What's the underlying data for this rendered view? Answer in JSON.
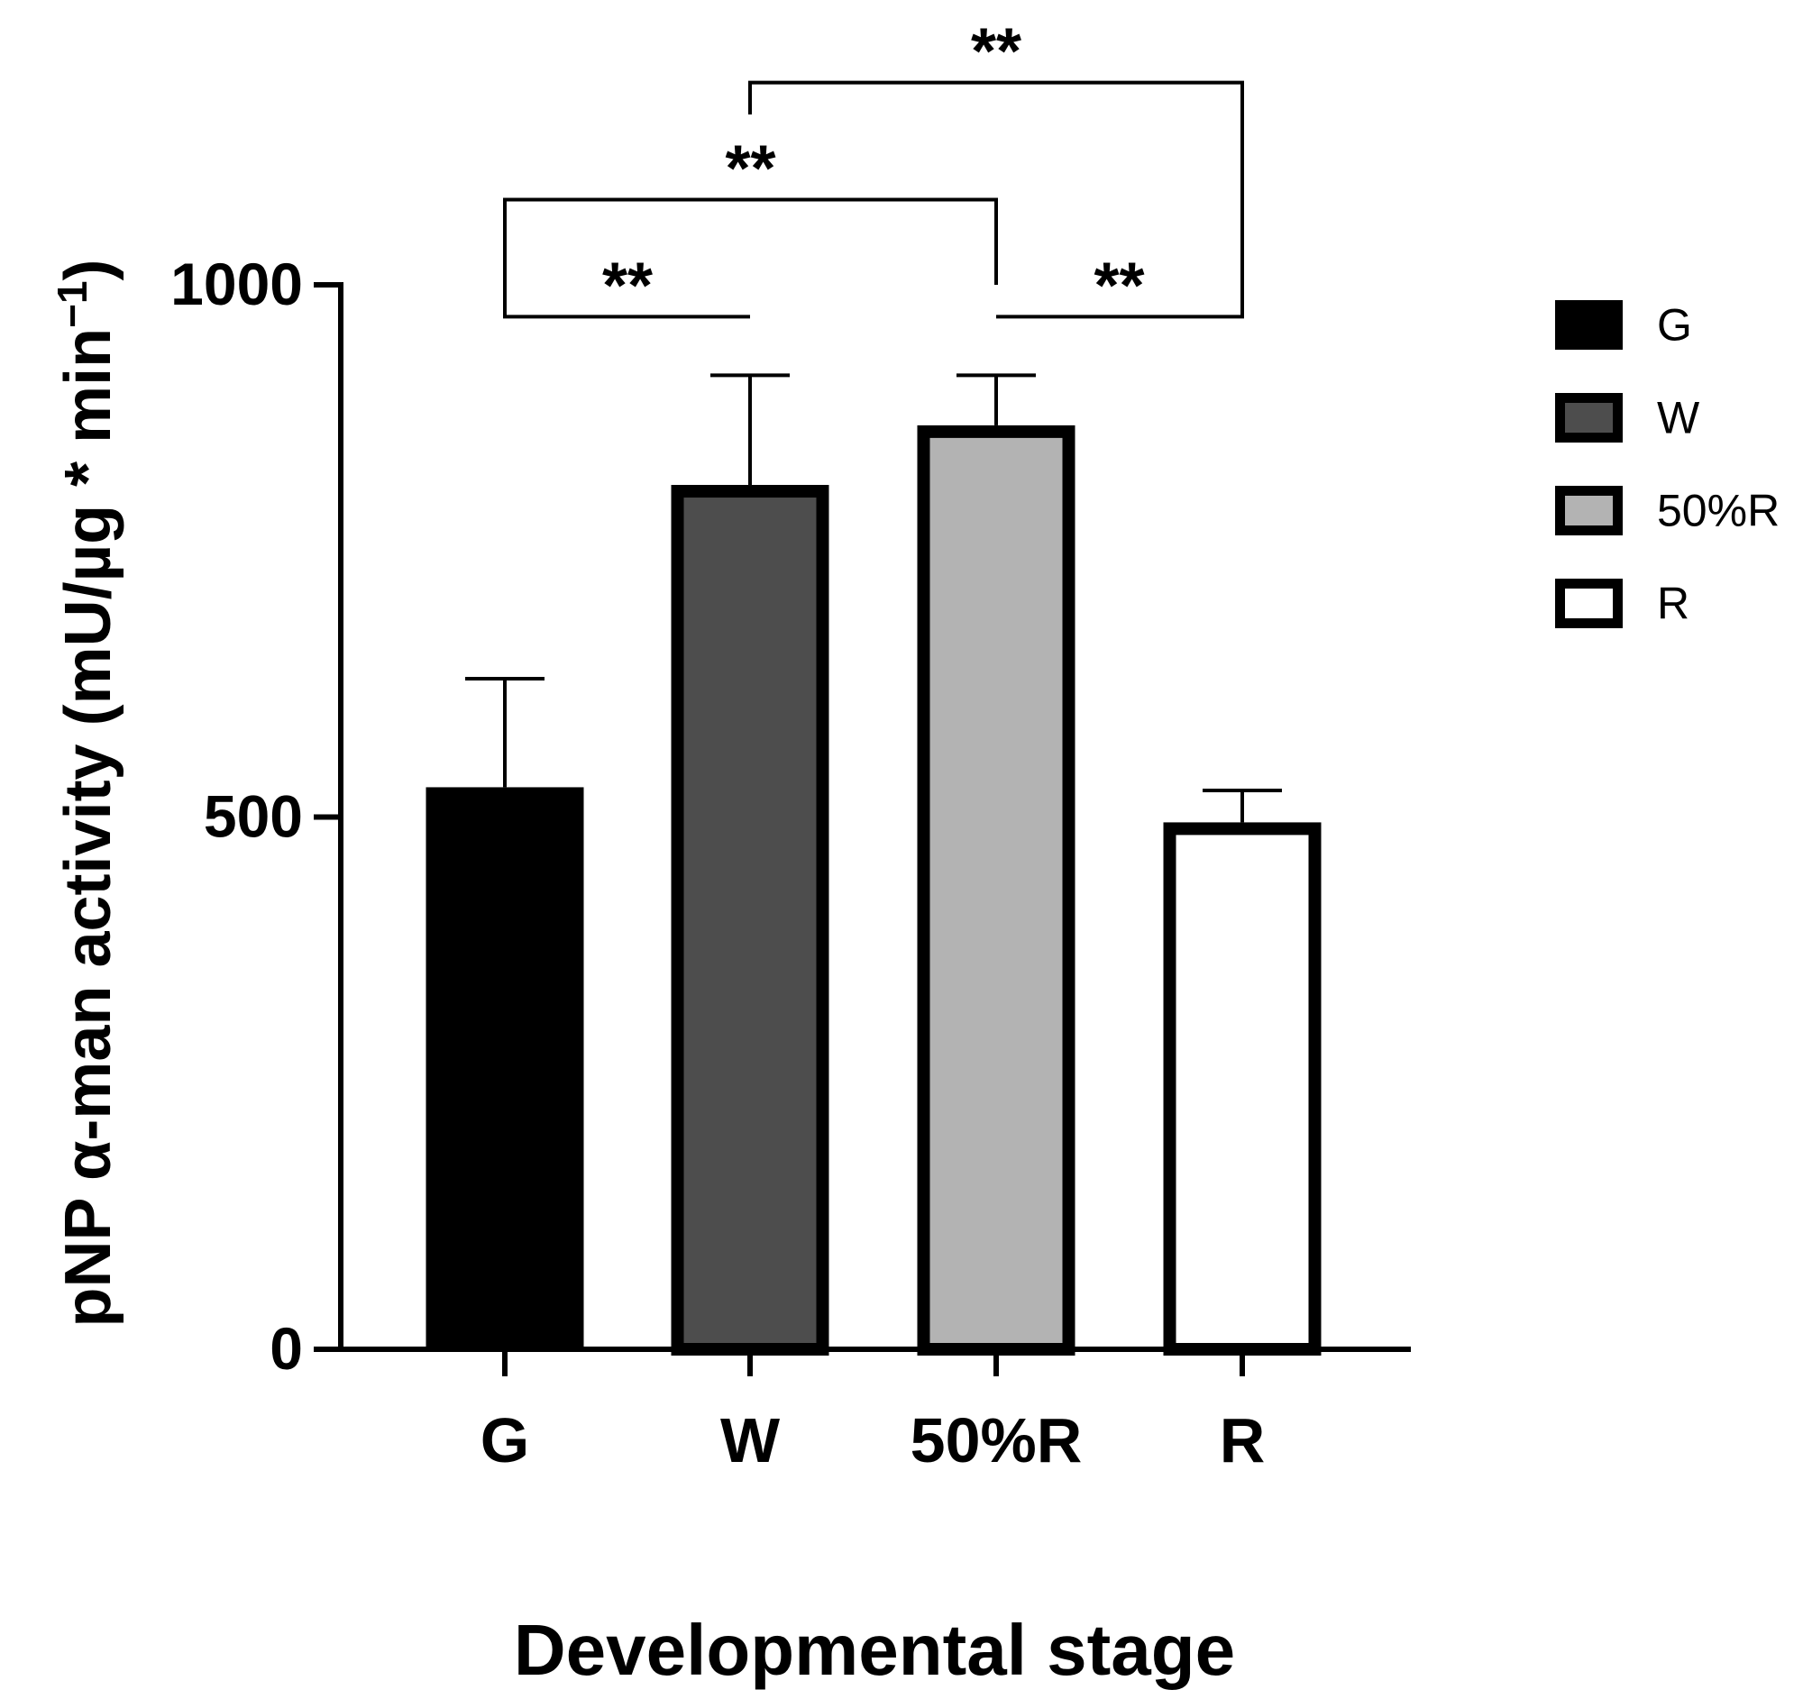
{
  "chart_data": {
    "type": "bar",
    "categories": [
      "G",
      "W",
      "50%R",
      "R"
    ],
    "values": [
      528,
      812,
      868,
      495
    ],
    "errors": [
      102,
      103,
      47,
      30
    ],
    "colors": [
      "#000000",
      "#4d4d4d",
      "#b3b3b3",
      "#ffffff"
    ],
    "ylim": [
      0,
      1000
    ],
    "yticks": [
      0,
      500,
      1000
    ],
    "ylabel_main": "pNP α-man activity (mU/µg * min",
    "ylabel_sup": "−1",
    "ylabel_end": ")",
    "xlabel": "Developmental stage",
    "legend": {
      "position": "right",
      "entries": [
        "G",
        "W",
        "50%R",
        "R"
      ]
    },
    "significance": [
      {
        "from": 0,
        "to": 1,
        "label": "**",
        "y": 970,
        "drop_from": 1000,
        "drop_to": 970
      },
      {
        "from": 2,
        "to": 3,
        "label": "**",
        "y": 970,
        "drop_from": 970,
        "drop_to": 1000
      },
      {
        "from": 0,
        "to": 2,
        "label": "**",
        "y": 1080,
        "drop_from": 1000,
        "drop_to": 1000
      },
      {
        "from": 1,
        "to": 3,
        "label": "**",
        "y": 1190,
        "drop_from": 1160,
        "drop_to": 1000
      }
    ]
  }
}
